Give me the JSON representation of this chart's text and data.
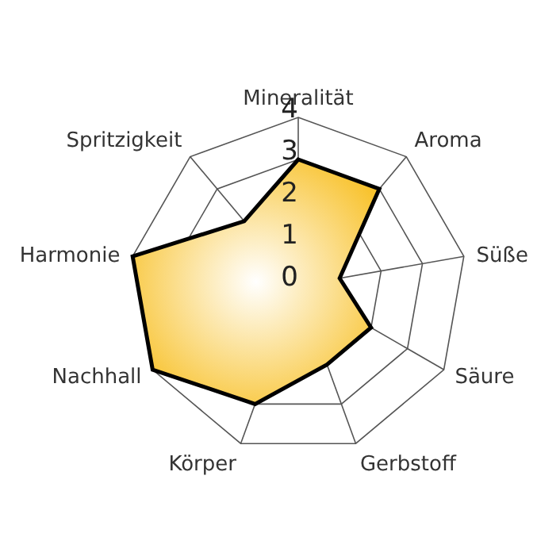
{
  "chart_data": {
    "type": "radar",
    "categories": [
      "Mineralität",
      "Aroma",
      "Süße",
      "Säure",
      "Gerbstoff",
      "Körper",
      "Nachhall",
      "Harmonie",
      "Spritzigkeit"
    ],
    "series": [
      {
        "color": "#000000",
        "values": [
          3,
          3,
          1,
          2,
          2,
          3,
          4,
          4,
          2
        ]
      }
    ],
    "ylim": [
      0,
      4
    ],
    "yticks": [
      0,
      1,
      2,
      3,
      4
    ]
  }
}
